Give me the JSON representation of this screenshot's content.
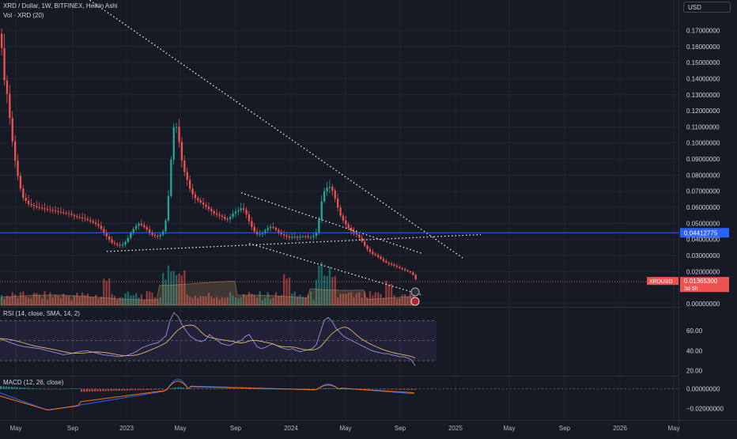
{
  "header": {
    "title": "XRD / Dollar, 1W, BITFINEX, Heikin Ashi",
    "volume_label": "Vol · XRD (20)",
    "currency": "USD"
  },
  "colors": {
    "bg": "#161a25",
    "grid": "#232735",
    "up": "#26a69a",
    "down": "#ef5350",
    "blue_line": "#2962ff",
    "axis_text": "#d1d4dc"
  },
  "chart_data": [
    {
      "type": "candlestick",
      "name": "price",
      "ylabel": "USD",
      "yticks": [
        "0.17000000",
        "0.16000000",
        "0.15000000",
        "0.14000000",
        "0.13000000",
        "0.12000000",
        "0.11000000",
        "0.10000000",
        "0.09000000",
        "0.08000000",
        "0.07000000",
        "0.06000000",
        "0.05000000",
        "0.04000000",
        "0.03000000",
        "0.02000000",
        "0.00000000"
      ],
      "yvalues": [
        0.17,
        0.16,
        0.15,
        0.14,
        0.13,
        0.12,
        0.11,
        0.1,
        0.09,
        0.08,
        0.07,
        0.06,
        0.05,
        0.04,
        0.03,
        0.02,
        0.0
      ],
      "ylim": [
        -0.002,
        0.185
      ],
      "xticks": [
        "May",
        "Sep",
        "2023",
        "May",
        "Sep",
        "2024",
        "May",
        "Sep",
        "2025",
        "May",
        "Sep",
        "2026",
        "May"
      ],
      "horizontal_line": {
        "value": 0.04412775,
        "label": "0.04412775"
      },
      "last_price": {
        "value": 0.013653,
        "symbol": "XRDUSD",
        "label": "0.01365300",
        "countdown": "3d 6h"
      },
      "close_path": [
        [
          0,
          0.168
        ],
        [
          2,
          0.15
        ],
        [
          4,
          0.14
        ],
        [
          8,
          0.13
        ],
        [
          12,
          0.112
        ],
        [
          16,
          0.095
        ],
        [
          20,
          0.083
        ],
        [
          24,
          0.073
        ],
        [
          28,
          0.066
        ],
        [
          35,
          0.062
        ],
        [
          45,
          0.06
        ],
        [
          55,
          0.059
        ],
        [
          65,
          0.058
        ],
        [
          75,
          0.057
        ],
        [
          85,
          0.056
        ],
        [
          95,
          0.054
        ],
        [
          105,
          0.053
        ],
        [
          115,
          0.051
        ],
        [
          125,
          0.048
        ],
        [
          130,
          0.044
        ],
        [
          135,
          0.041
        ],
        [
          140,
          0.038
        ],
        [
          145,
          0.037
        ],
        [
          150,
          0.036
        ],
        [
          155,
          0.037
        ],
        [
          160,
          0.04
        ],
        [
          165,
          0.045
        ],
        [
          170,
          0.048
        ],
        [
          175,
          0.05
        ],
        [
          180,
          0.048
        ],
        [
          185,
          0.046
        ],
        [
          190,
          0.043
        ],
        [
          195,
          0.042
        ],
        [
          200,
          0.042
        ],
        [
          205,
          0.045
        ],
        [
          210,
          0.055
        ],
        [
          213,
          0.075
        ],
        [
          216,
          0.095
        ],
        [
          219,
          0.112
        ],
        [
          222,
          0.11
        ],
        [
          225,
          0.102
        ],
        [
          230,
          0.085
        ],
        [
          235,
          0.078
        ],
        [
          240,
          0.07
        ],
        [
          245,
          0.066
        ],
        [
          250,
          0.064
        ],
        [
          255,
          0.062
        ],
        [
          260,
          0.06
        ],
        [
          265,
          0.058
        ],
        [
          270,
          0.056
        ],
        [
          275,
          0.055
        ],
        [
          280,
          0.054
        ],
        [
          285,
          0.052
        ],
        [
          290,
          0.054
        ],
        [
          295,
          0.057
        ],
        [
          300,
          0.058
        ],
        [
          305,
          0.06
        ],
        [
          310,
          0.056
        ],
        [
          315,
          0.05
        ],
        [
          320,
          0.045
        ],
        [
          325,
          0.043
        ],
        [
          330,
          0.044
        ],
        [
          335,
          0.046
        ],
        [
          340,
          0.048
        ],
        [
          345,
          0.047
        ],
        [
          350,
          0.045
        ],
        [
          355,
          0.043
        ],
        [
          360,
          0.042
        ],
        [
          365,
          0.041
        ],
        [
          370,
          0.042
        ],
        [
          375,
          0.041
        ],
        [
          380,
          0.042
        ],
        [
          385,
          0.042
        ],
        [
          390,
          0.041
        ],
        [
          395,
          0.042
        ],
        [
          400,
          0.045
        ],
        [
          403,
          0.055
        ],
        [
          406,
          0.065
        ],
        [
          409,
          0.07
        ],
        [
          412,
          0.072
        ],
        [
          415,
          0.073
        ],
        [
          418,
          0.072
        ],
        [
          421,
          0.068
        ],
        [
          424,
          0.063
        ],
        [
          427,
          0.058
        ],
        [
          430,
          0.054
        ],
        [
          435,
          0.05
        ],
        [
          440,
          0.047
        ],
        [
          445,
          0.044
        ],
        [
          450,
          0.043
        ],
        [
          455,
          0.04
        ],
        [
          460,
          0.036
        ],
        [
          465,
          0.033
        ],
        [
          470,
          0.031
        ],
        [
          475,
          0.03
        ],
        [
          480,
          0.028
        ],
        [
          485,
          0.026
        ],
        [
          490,
          0.025
        ],
        [
          495,
          0.024
        ],
        [
          500,
          0.023
        ],
        [
          505,
          0.022
        ],
        [
          510,
          0.021
        ],
        [
          515,
          0.02
        ],
        [
          520,
          0.019
        ],
        [
          524,
          0.0155
        ],
        [
          527,
          0.0137
        ]
      ],
      "trendlines": [
        {
          "from": [
            110,
            0.19
          ],
          "to": [
            585,
            0.0285
          ]
        },
        {
          "from": [
            135,
            0.0325
          ],
          "to": [
            608,
            0.043
          ]
        },
        {
          "from": [
            305,
            0.069
          ],
          "to": [
            535,
            0.031
          ]
        },
        {
          "from": [
            315,
            0.0375
          ],
          "to": [
            535,
            0.0052
          ]
        }
      ]
    },
    {
      "type": "bar",
      "name": "volume",
      "label": "Vol · XRD (20)"
    },
    {
      "type": "line",
      "name": "rsi",
      "label": "RSI (14, close, SMA, 14, 2)",
      "yticks": [
        "60.00",
        "40.00",
        "20.00"
      ],
      "yvalues": [
        60,
        40,
        20
      ],
      "ylim": [
        15,
        82
      ],
      "band": [
        30,
        70
      ],
      "midline": 50,
      "path": [
        [
          0,
          52
        ],
        [
          10,
          49
        ],
        [
          20,
          46
        ],
        [
          30,
          44
        ],
        [
          40,
          43
        ],
        [
          50,
          42
        ],
        [
          60,
          40
        ],
        [
          70,
          38
        ],
        [
          80,
          36
        ],
        [
          90,
          37
        ],
        [
          100,
          39
        ],
        [
          110,
          40
        ],
        [
          120,
          38
        ],
        [
          130,
          36
        ],
        [
          140,
          35
        ],
        [
          150,
          34
        ],
        [
          160,
          35
        ],
        [
          170,
          38
        ],
        [
          180,
          43
        ],
        [
          190,
          46
        ],
        [
          200,
          48
        ],
        [
          210,
          55
        ],
        [
          215,
          70
        ],
        [
          220,
          78
        ],
        [
          225,
          74
        ],
        [
          230,
          66
        ],
        [
          235,
          60
        ],
        [
          240,
          55
        ],
        [
          245,
          52
        ],
        [
          250,
          50
        ],
        [
          255,
          49
        ],
        [
          260,
          51
        ],
        [
          265,
          56
        ],
        [
          270,
          53
        ],
        [
          275,
          50
        ],
        [
          280,
          47
        ],
        [
          285,
          46
        ],
        [
          290,
          45
        ],
        [
          295,
          47
        ],
        [
          300,
          49
        ],
        [
          305,
          50
        ],
        [
          310,
          54
        ],
        [
          315,
          56
        ],
        [
          320,
          50
        ],
        [
          325,
          44
        ],
        [
          330,
          42
        ],
        [
          335,
          43
        ],
        [
          340,
          45
        ],
        [
          345,
          47
        ],
        [
          350,
          45
        ],
        [
          355,
          43
        ],
        [
          360,
          42
        ],
        [
          365,
          41
        ],
        [
          370,
          42
        ],
        [
          375,
          40
        ],
        [
          380,
          39
        ],
        [
          385,
          40
        ],
        [
          390,
          41
        ],
        [
          395,
          42
        ],
        [
          400,
          46
        ],
        [
          405,
          58
        ],
        [
          410,
          70
        ],
        [
          415,
          73
        ],
        [
          420,
          69
        ],
        [
          425,
          62
        ],
        [
          430,
          58
        ],
        [
          435,
          54
        ],
        [
          440,
          52
        ],
        [
          445,
          50
        ],
        [
          450,
          48
        ],
        [
          455,
          46
        ],
        [
          460,
          44
        ],
        [
          465,
          42
        ],
        [
          470,
          40
        ],
        [
          475,
          39
        ],
        [
          480,
          38
        ],
        [
          485,
          37
        ],
        [
          490,
          37
        ],
        [
          495,
          36
        ],
        [
          500,
          35
        ],
        [
          505,
          34
        ],
        [
          510,
          34
        ],
        [
          515,
          33
        ],
        [
          520,
          31
        ],
        [
          525,
          25
        ]
      ]
    },
    {
      "type": "line",
      "name": "macd",
      "label": "MACD (12, 26, close)",
      "yticks": [
        "0.00000000",
        "−0.02000000"
      ],
      "yvalues": [
        0,
        -0.02
      ],
      "ylim": [
        -0.032,
        0.012
      ]
    }
  ]
}
